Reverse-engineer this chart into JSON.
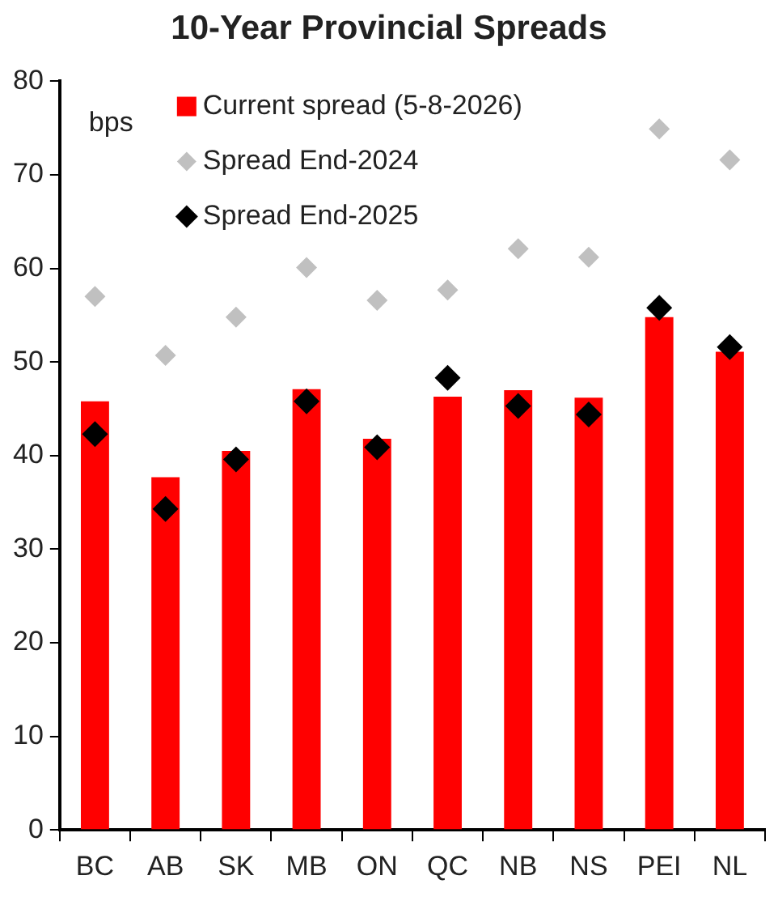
{
  "chart_data": {
    "type": "bar",
    "title": "10-Year Provincial Spreads",
    "ylabel": "bps",
    "categories": [
      "BC",
      "AB",
      "SK",
      "MB",
      "ON",
      "QC",
      "NB",
      "NS",
      "PEI",
      "NL"
    ],
    "series": [
      {
        "name": "Current spread (5-8-2026)",
        "color": "#ff0000",
        "values": [
          45.8,
          37.7,
          40.5,
          47.1,
          41.8,
          46.3,
          47.0,
          46.2,
          54.8,
          51.1
        ]
      },
      {
        "name": "Spread End-2024",
        "type": "scatter",
        "color": "#c0c0c0",
        "x": [
          "BC",
          "AB",
          "SK",
          "MB",
          "ON",
          "QC",
          "NB",
          "NS",
          "PEI",
          "NL"
        ],
        "values": [
          57.0,
          50.7,
          54.8,
          60.1,
          56.6,
          57.7,
          62.1,
          61.2,
          74.9,
          71.6
        ]
      },
      {
        "name": "Spread End-2025",
        "type": "scatter",
        "color": "#000000",
        "x": [
          "BC",
          "AB",
          "SK",
          "MB",
          "ON",
          "QC",
          "NB",
          "NS",
          "PEI",
          "NL"
        ],
        "values": [
          42.3,
          34.3,
          39.6,
          45.8,
          40.9,
          48.3,
          45.3,
          44.4,
          55.8,
          51.6
        ]
      }
    ],
    "ylim": [
      0,
      80
    ],
    "yticks": [
      0,
      10,
      20,
      30,
      40,
      50,
      60,
      70,
      80
    ],
    "grid": false,
    "legend": "top",
    "marker": "diamond"
  }
}
